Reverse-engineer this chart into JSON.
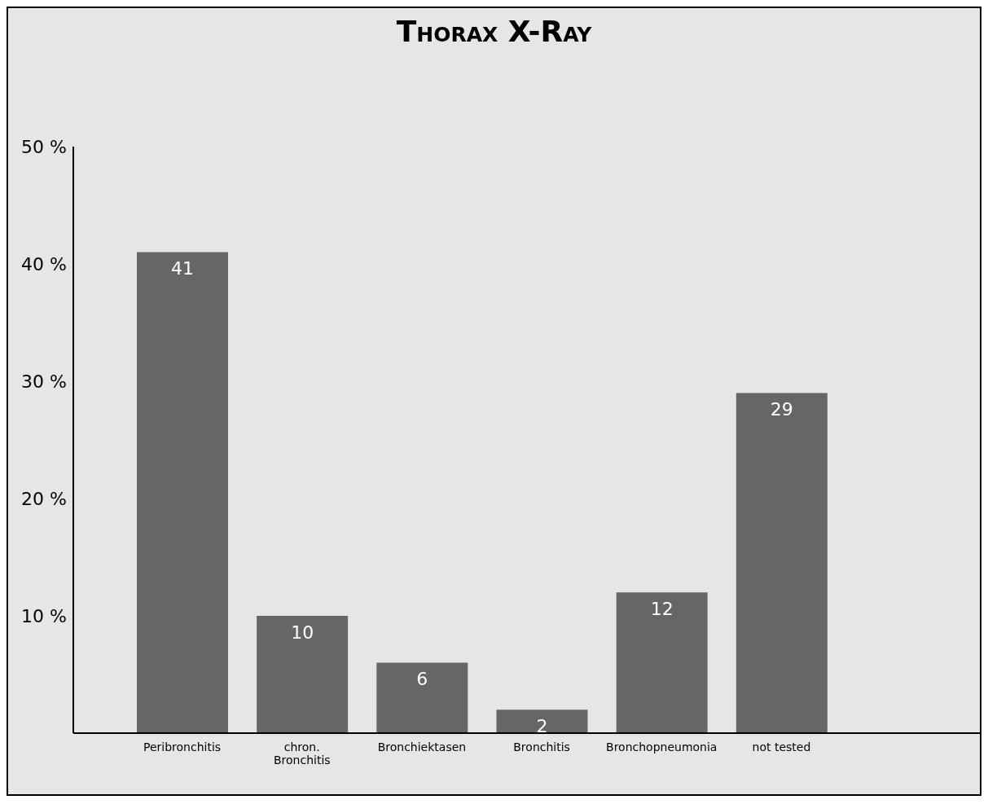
{
  "chart_data": {
    "type": "bar",
    "title": "Thorax X-Ray",
    "categories": [
      "Peribronchitis",
      "chron. Bronchitis",
      "Bronchiektasen",
      "Bronchitis",
      "Bronchopneumonia",
      "not tested"
    ],
    "values": [
      41,
      10,
      6,
      2,
      12,
      29
    ],
    "color": "#666666",
    "ylim": [
      0,
      50
    ],
    "yticks": [
      {
        "value": 10,
        "label": "10 %"
      },
      {
        "value": 20,
        "label": "20 %"
      },
      {
        "value": 30,
        "label": "30 %"
      },
      {
        "value": 40,
        "label": "40 %"
      },
      {
        "value": 50,
        "label": "50 %"
      }
    ],
    "data_labels": true
  }
}
